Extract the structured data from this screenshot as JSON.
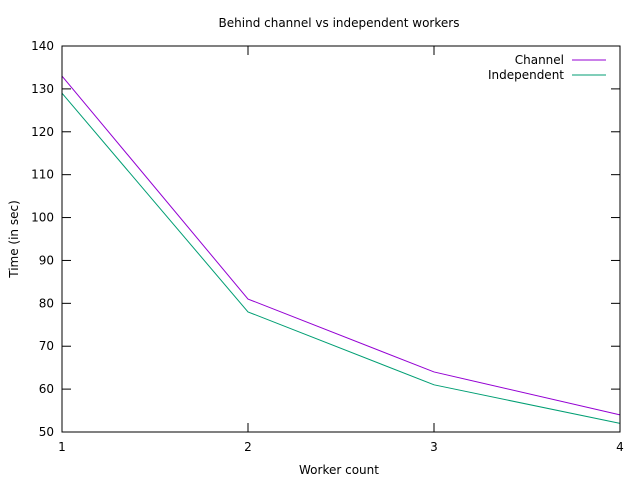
{
  "chart_data": {
    "type": "line",
    "title": "Behind channel vs independent workers",
    "xlabel": "Worker count",
    "ylabel": "Time (in sec)",
    "x": [
      1,
      2,
      3,
      4
    ],
    "xlim": [
      1,
      4
    ],
    "ylim": [
      50,
      140
    ],
    "xticks": [
      1,
      2,
      3,
      4
    ],
    "yticks": [
      50,
      60,
      70,
      80,
      90,
      100,
      110,
      120,
      130,
      140
    ],
    "grid": false,
    "legend_position": "top-right",
    "series": [
      {
        "name": "Channel",
        "color": "#9400d3",
        "values": [
          133,
          81,
          64,
          54
        ]
      },
      {
        "name": "Independent",
        "color": "#009e73",
        "values": [
          129,
          78,
          61,
          52
        ]
      }
    ]
  }
}
